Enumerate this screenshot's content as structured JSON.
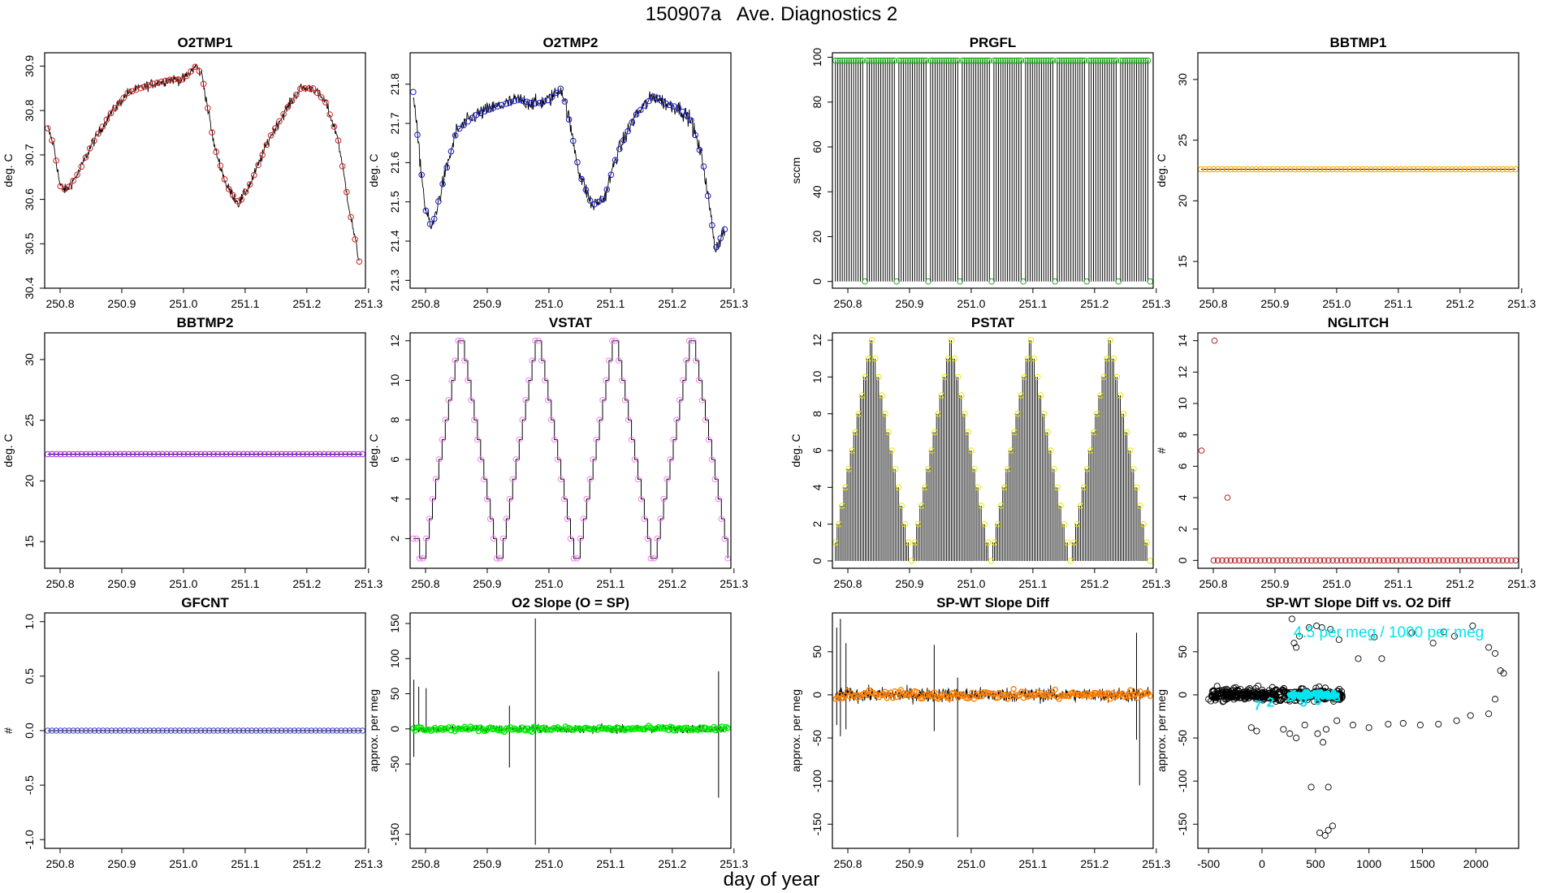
{
  "figure": {
    "title": "150907a   Ave. Diagnostics 2",
    "xlabel": "day of year"
  },
  "colors": {
    "red": "#d02020",
    "blue": "#1a1acc",
    "green": "#22aa22",
    "orange": "#ffa500",
    "purple": "#a020f0",
    "violet": "#ee82ee",
    "yellow": "#e8e800",
    "brown": "#b22222",
    "slate": "#4646c8",
    "lime": "#00ee00",
    "darkorange": "#ff7f00",
    "cyan": "#00e5ee"
  },
  "chart_data": [
    {
      "id": "o2tmp1",
      "type": "line",
      "title": "O2TMP1",
      "ylabel": "deg. C",
      "xlim": [
        250.775,
        251.295
      ],
      "ylim": [
        30.4,
        30.93
      ],
      "xticks": [
        250.8,
        250.9,
        251.0,
        251.1,
        251.2,
        251.3
      ],
      "xtick_labels": [
        "250.8",
        "250.9",
        "251.0",
        "251.1",
        "251.2",
        "251.3"
      ],
      "yticks": [
        30.4,
        30.5,
        30.6,
        30.7,
        30.8,
        30.9
      ],
      "ytick_labels": [
        "30.4",
        "30.5",
        "30.6",
        "30.7",
        "30.8",
        "30.9"
      ],
      "x": [
        250.78,
        250.79,
        250.8,
        250.81,
        250.83,
        250.85,
        250.88,
        250.91,
        250.95,
        250.98,
        251.0,
        251.02,
        251.03,
        251.05,
        251.07,
        251.09,
        251.11,
        251.14,
        251.17,
        251.19,
        251.21,
        251.23,
        251.25,
        251.27,
        251.285
      ],
      "y": [
        30.76,
        30.72,
        30.63,
        30.62,
        30.66,
        30.72,
        30.79,
        30.84,
        30.86,
        30.87,
        30.87,
        30.9,
        30.88,
        30.72,
        30.63,
        30.59,
        30.64,
        30.74,
        30.81,
        30.85,
        30.85,
        30.82,
        30.74,
        30.57,
        30.46
      ],
      "noise": 0.02,
      "marker_color": "red"
    },
    {
      "id": "o2tmp2",
      "type": "line",
      "title": "O2TMP2",
      "ylabel": "deg. C",
      "xlim": [
        250.775,
        251.295
      ],
      "ylim": [
        21.28,
        21.88
      ],
      "xticks": [
        250.8,
        250.9,
        251.0,
        251.1,
        251.2,
        251.3
      ],
      "xtick_labels": [
        "250.8",
        "250.9",
        "251.0",
        "251.1",
        "251.2",
        "251.3"
      ],
      "yticks": [
        21.3,
        21.4,
        21.5,
        21.6,
        21.7,
        21.8
      ],
      "ytick_labels": [
        "21.3",
        "21.4",
        "21.5",
        "21.6",
        "21.7",
        "21.8"
      ],
      "x": [
        250.78,
        250.79,
        250.8,
        250.81,
        250.83,
        250.85,
        250.88,
        250.91,
        250.95,
        250.98,
        251.0,
        251.02,
        251.03,
        251.05,
        251.07,
        251.09,
        251.11,
        251.14,
        251.17,
        251.19,
        251.21,
        251.23,
        251.25,
        251.27,
        251.285
      ],
      "y": [
        21.78,
        21.62,
        21.48,
        21.43,
        21.56,
        21.68,
        21.72,
        21.74,
        21.76,
        21.75,
        21.76,
        21.79,
        21.73,
        21.57,
        21.49,
        21.51,
        21.62,
        21.72,
        21.77,
        21.75,
        21.74,
        21.71,
        21.6,
        21.38,
        21.43
      ],
      "noise": 0.035,
      "marker_color": "blue"
    },
    {
      "id": "prgfl",
      "type": "spikes",
      "title": "PRGFL",
      "ylabel": "sccm",
      "xlim": [
        250.775,
        251.295
      ],
      "ylim": [
        -3,
        102
      ],
      "xticks": [
        250.8,
        250.9,
        251.0,
        251.1,
        251.2,
        251.3
      ],
      "xtick_labels": [
        "250.8",
        "250.9",
        "251.0",
        "251.1",
        "251.2",
        "251.3"
      ],
      "yticks": [
        0,
        20,
        40,
        60,
        80,
        100
      ],
      "ytick_labels": [
        "0",
        "20",
        "40",
        "60",
        "80",
        "100"
      ],
      "x_start": 250.78,
      "x_end": 251.29,
      "count": 140,
      "high": 98.5,
      "low": 0,
      "low_every": 14,
      "marker_color": "green"
    },
    {
      "id": "bbtmp1",
      "type": "flat",
      "title": "BBTMP1",
      "ylabel": "deg. C",
      "xlim": [
        250.775,
        251.295
      ],
      "ylim": [
        12.8,
        32.2
      ],
      "xticks": [
        250.8,
        250.9,
        251.0,
        251.1,
        251.2,
        251.3
      ],
      "xtick_labels": [
        "250.8",
        "250.9",
        "251.0",
        "251.1",
        "251.2",
        "251.3"
      ],
      "yticks": [
        15,
        20,
        25,
        30
      ],
      "ytick_labels": [
        "15",
        "20",
        "25",
        "30"
      ],
      "x_start": 250.78,
      "x_end": 251.29,
      "count": 75,
      "value": 22.6,
      "marker_color": "orange"
    },
    {
      "id": "bbtmp2",
      "type": "flat",
      "title": "BBTMP2",
      "ylabel": "deg. C",
      "xlim": [
        250.775,
        251.295
      ],
      "ylim": [
        12.8,
        32.2
      ],
      "xticks": [
        250.8,
        250.9,
        251.0,
        251.1,
        251.2,
        251.3
      ],
      "xtick_labels": [
        "250.8",
        "250.9",
        "251.0",
        "251.1",
        "251.2",
        "251.3"
      ],
      "yticks": [
        15,
        20,
        25,
        30
      ],
      "ytick_labels": [
        "15",
        "20",
        "25",
        "30"
      ],
      "x_start": 250.78,
      "x_end": 251.29,
      "count": 75,
      "value": 22.2,
      "marker_color": "purple"
    },
    {
      "id": "vstat",
      "type": "step",
      "title": "VSTAT",
      "ylabel": "deg. C",
      "xlim": [
        250.775,
        251.295
      ],
      "ylim": [
        0.5,
        12.4
      ],
      "xticks": [
        250.8,
        250.9,
        251.0,
        251.1,
        251.2,
        251.3
      ],
      "xtick_labels": [
        "250.8",
        "250.9",
        "251.0",
        "251.1",
        "251.2",
        "251.3"
      ],
      "yticks": [
        2,
        4,
        6,
        8,
        10,
        12
      ],
      "ytick_labels": [
        "2",
        "4",
        "6",
        "8",
        "10",
        "12"
      ],
      "x_start": 250.78,
      "x_end": 251.29,
      "values": [
        2,
        2,
        1,
        1,
        2,
        3,
        4,
        5,
        6,
        7,
        8,
        9,
        10,
        11,
        12,
        12,
        11,
        10,
        9,
        8,
        7,
        6,
        5,
        4,
        3,
        2,
        1,
        1,
        2,
        3,
        4,
        5,
        6,
        7,
        8,
        9,
        10,
        11,
        12,
        12,
        11,
        10,
        9,
        8,
        7,
        6,
        5,
        4,
        3,
        2,
        1,
        1,
        2,
        3,
        4,
        5,
        6,
        7,
        8,
        9,
        10,
        11,
        12,
        12,
        11,
        10,
        9,
        8,
        7,
        6,
        5,
        4,
        3,
        2,
        1,
        1,
        2,
        3,
        4,
        5,
        6,
        7,
        8,
        9,
        10,
        11,
        12,
        12,
        11,
        10,
        9,
        8,
        7,
        6,
        5,
        4,
        3,
        2,
        1
      ],
      "marker_color": "violet"
    },
    {
      "id": "pstat",
      "type": "spikes_var",
      "title": "PSTAT",
      "ylabel": "deg. C",
      "xlim": [
        250.775,
        251.295
      ],
      "ylim": [
        -0.4,
        12.4
      ],
      "xticks": [
        250.8,
        250.9,
        251.0,
        251.1,
        251.2,
        251.3
      ],
      "xtick_labels": [
        "250.8",
        "250.9",
        "251.0",
        "251.1",
        "251.2",
        "251.3"
      ],
      "yticks": [
        0,
        2,
        4,
        6,
        8,
        10,
        12
      ],
      "ytick_labels": [
        "0",
        "2",
        "4",
        "6",
        "8",
        "10",
        "12"
      ],
      "x_start": 250.78,
      "x_end": 251.29,
      "values": [
        1,
        2,
        3,
        4,
        5,
        6,
        7,
        8,
        9,
        10,
        11,
        12,
        11,
        10,
        9,
        8,
        7,
        6,
        5,
        4,
        3,
        2,
        1,
        0,
        1,
        2,
        3,
        4,
        5,
        6,
        7,
        8,
        9,
        10,
        11,
        12,
        11,
        10,
        9,
        8,
        7,
        6,
        5,
        4,
        3,
        2,
        1,
        0,
        1,
        2,
        3,
        4,
        5,
        6,
        7,
        8,
        9,
        10,
        11,
        12,
        11,
        10,
        9,
        8,
        7,
        6,
        5,
        4,
        3,
        2,
        1,
        0,
        1,
        2,
        3,
        4,
        5,
        6,
        7,
        8,
        9,
        10,
        11,
        12,
        11,
        10,
        9,
        8,
        7,
        6,
        5,
        4,
        3,
        2,
        1,
        0
      ],
      "marker_color": "yellow"
    },
    {
      "id": "nglitch",
      "type": "scatter",
      "title": "NGLITCH",
      "ylabel": "#",
      "xlim": [
        250.775,
        251.295
      ],
      "ylim": [
        -0.5,
        14.5
      ],
      "xticks": [
        250.8,
        250.9,
        251.0,
        251.1,
        251.2,
        251.3
      ],
      "xtick_labels": [
        "250.8",
        "250.9",
        "251.0",
        "251.1",
        "251.2",
        "251.3"
      ],
      "yticks": [
        0,
        2,
        4,
        6,
        8,
        10,
        12,
        14
      ],
      "ytick_labels": [
        "0",
        "2",
        "4",
        "6",
        "8",
        "10",
        "12",
        "14"
      ],
      "x_start": 250.78,
      "x_end": 251.29,
      "count": 75,
      "baseline": 0,
      "special_points": [
        {
          "x": 250.781,
          "y": 7
        },
        {
          "x": 250.802,
          "y": 14
        },
        {
          "x": 250.823,
          "y": 4
        }
      ],
      "marker_color": "brown"
    },
    {
      "id": "gfcnt",
      "type": "flat",
      "title": "GFCNT",
      "ylabel": "#",
      "xlim": [
        250.775,
        251.295
      ],
      "ylim": [
        -1.08,
        1.08
      ],
      "xticks": [
        250.8,
        250.9,
        251.0,
        251.1,
        251.2,
        251.3
      ],
      "xtick_labels": [
        "250.8",
        "250.9",
        "251.0",
        "251.1",
        "251.2",
        "251.3"
      ],
      "yticks": [
        -1.0,
        -0.5,
        0.0,
        0.5,
        1.0
      ],
      "ytick_labels": [
        "-1.0",
        "-0.5",
        "0.0",
        "0.5",
        "1.0"
      ],
      "x_start": 250.78,
      "x_end": 251.29,
      "count": 75,
      "value": 0,
      "marker_color": "slate"
    },
    {
      "id": "o2slope",
      "type": "noise",
      "title": "O2 Slope (O = SP)",
      "ylabel": "approx. per meg",
      "xlim": [
        250.775,
        251.295
      ],
      "ylim": [
        -170,
        165
      ],
      "xticks": [
        250.8,
        250.9,
        251.0,
        251.1,
        251.2,
        251.3
      ],
      "xtick_labels": [
        "250.8",
        "250.9",
        "251.0",
        "251.1",
        "251.2",
        "251.3"
      ],
      "yticks": [
        -150,
        -50,
        0,
        50,
        100,
        150
      ],
      "ytick_labels": [
        "-150",
        "-50",
        "0",
        "50",
        "100",
        "150"
      ],
      "x_start": 250.78,
      "x_end": 251.29,
      "center": 0,
      "amplitude": 6,
      "spikes": [
        {
          "x": 250.781,
          "lo": -40,
          "hi": 70
        },
        {
          "x": 250.789,
          "lo": -5,
          "hi": 60
        },
        {
          "x": 250.801,
          "lo": -5,
          "hi": 58
        },
        {
          "x": 250.936,
          "lo": -55,
          "hi": 33
        },
        {
          "x": 250.978,
          "lo": -165,
          "hi": 157
        },
        {
          "x": 251.275,
          "lo": -98,
          "hi": 82
        }
      ],
      "marker_color": "lime"
    },
    {
      "id": "spwtdiff",
      "type": "noise",
      "title": "SP-WT Slope Diff",
      "ylabel": "approx. per meg",
      "xlim": [
        250.775,
        251.295
      ],
      "ylim": [
        -178,
        95
      ],
      "xticks": [
        250.8,
        250.9,
        251.0,
        251.1,
        251.2,
        251.3
      ],
      "xtick_labels": [
        "250.8",
        "250.9",
        "251.0",
        "251.1",
        "251.2",
        "251.3"
      ],
      "yticks": [
        -150,
        -100,
        -50,
        0,
        50
      ],
      "ytick_labels": [
        "-150",
        "-100",
        "-50",
        "0",
        "50"
      ],
      "x_start": 250.78,
      "x_end": 251.29,
      "center": 0,
      "amplitude": 9,
      "spikes": [
        {
          "x": 250.782,
          "lo": -35,
          "hi": 78
        },
        {
          "x": 250.788,
          "lo": -48,
          "hi": 88
        },
        {
          "x": 250.797,
          "lo": -40,
          "hi": 60
        },
        {
          "x": 250.94,
          "lo": -42,
          "hi": 58
        },
        {
          "x": 250.978,
          "lo": -165,
          "hi": 20
        },
        {
          "x": 251.268,
          "lo": -52,
          "hi": 72
        },
        {
          "x": 251.273,
          "lo": -105,
          "hi": 0
        }
      ],
      "marker_color": "darkorange"
    },
    {
      "id": "spwt_vs_o2",
      "type": "scatter_xy",
      "title": "SP-WT Slope Diff vs. O2 Diff",
      "ylabel": "approx. per meg",
      "xlim": [
        -600,
        2400
      ],
      "ylim": [
        -178,
        95
      ],
      "xticks": [
        -500,
        0,
        500,
        1000,
        1500,
        2000
      ],
      "xtick_labels": [
        "-500",
        "0",
        "500",
        "1000",
        "1500",
        "2000"
      ],
      "yticks": [
        -150,
        -100,
        -50,
        0,
        50
      ],
      "ytick_labels": [
        "-150",
        "-100",
        "-50",
        "0",
        "50"
      ],
      "cluster": {
        "x_min": -480,
        "x_max": 760,
        "y_spread": 12
      },
      "points": [
        [
          280,
          88
        ],
        [
          300,
          60
        ],
        [
          320,
          55
        ],
        [
          350,
          68
        ],
        [
          440,
          78
        ],
        [
          510,
          80
        ],
        [
          560,
          78
        ],
        [
          640,
          76
        ],
        [
          720,
          64
        ],
        [
          900,
          42
        ],
        [
          1050,
          67
        ],
        [
          1120,
          42
        ],
        [
          1400,
          72
        ],
        [
          1600,
          60
        ],
        [
          1700,
          73
        ],
        [
          1800,
          68
        ],
        [
          1970,
          80
        ],
        [
          2120,
          55
        ],
        [
          2180,
          48
        ],
        [
          2230,
          28
        ],
        [
          2260,
          25
        ],
        [
          2180,
          -5
        ],
        [
          2120,
          -22
        ],
        [
          1950,
          -24
        ],
        [
          1820,
          -30
        ],
        [
          1650,
          -34
        ],
        [
          1480,
          -35
        ],
        [
          1320,
          -33
        ],
        [
          1180,
          -34
        ],
        [
          1000,
          -38
        ],
        [
          850,
          -35
        ],
        [
          700,
          -30
        ],
        [
          600,
          -40
        ],
        [
          520,
          -45
        ],
        [
          400,
          -35
        ],
        [
          320,
          -50
        ],
        [
          260,
          -45
        ],
        [
          200,
          -40
        ],
        [
          -100,
          -38
        ],
        [
          -50,
          -42
        ],
        [
          570,
          -55
        ],
        [
          460,
          -107
        ],
        [
          620,
          -107
        ],
        [
          540,
          -160
        ],
        [
          590,
          -163
        ],
        [
          620,
          -157
        ],
        [
          660,
          -152
        ],
        [
          -450,
          5
        ],
        [
          -500,
          -5
        ],
        [
          -420,
          10
        ]
      ],
      "annotation": "4.5 per meg / 1000 per meg",
      "labels": [
        {
          "x": -40,
          "y": -12,
          "text": "7"
        },
        {
          "x": 80,
          "y": -8,
          "text": "2"
        },
        {
          "x": 260,
          "y": -2,
          "text": "2"
        },
        {
          "x": 390,
          "y": -8,
          "text": "9"
        },
        {
          "x": 520,
          "y": -6,
          "text": "6"
        },
        {
          "x": 700,
          "y": -2,
          "text": "3"
        }
      ],
      "marker_color": "cyan"
    }
  ]
}
